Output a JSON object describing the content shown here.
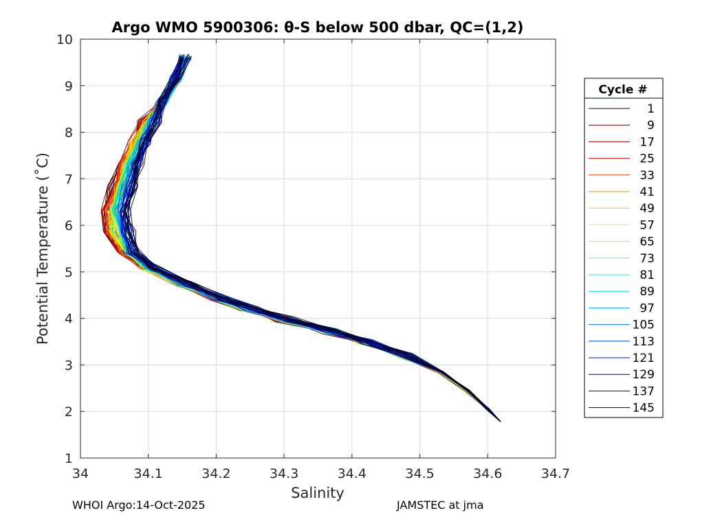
{
  "chart_data": {
    "type": "line",
    "title": "Argo WMO 5900306: θ-S below 500 dbar,  QC=(1,2)",
    "xlabel": "Salinity",
    "ylabel": "Potential Temperature (˚C)",
    "xlim": [
      34,
      34.7
    ],
    "ylim": [
      1,
      10
    ],
    "xticks": [
      "34",
      "34.1",
      "34.2",
      "34.3",
      "34.4",
      "34.5",
      "34.6",
      "34.7"
    ],
    "yticks": [
      "1",
      "2",
      "3",
      "4",
      "5",
      "6",
      "7",
      "8",
      "9",
      "10"
    ],
    "grid": true,
    "legend": {
      "title": "Cycle #",
      "placement": "right-outside",
      "entries": [
        {
          "label": "1",
          "color": "#300000"
        },
        {
          "label": "9",
          "color": "#700000"
        },
        {
          "label": "17",
          "color": "#b00000"
        },
        {
          "label": "25",
          "color": "#e61000"
        },
        {
          "label": "33",
          "color": "#ff4a00"
        },
        {
          "label": "41",
          "color": "#ff8a00"
        },
        {
          "label": "49",
          "color": "#ffc400"
        },
        {
          "label": "57",
          "color": "#f6f600"
        },
        {
          "label": "65",
          "color": "#9cff3a"
        },
        {
          "label": "73",
          "color": "#5aff80"
        },
        {
          "label": "81",
          "color": "#20f0b0"
        },
        {
          "label": "89",
          "color": "#00d8e0"
        },
        {
          "label": "97",
          "color": "#00a8ff"
        },
        {
          "label": "105",
          "color": "#0070e0"
        },
        {
          "label": "113",
          "color": "#0040ff"
        },
        {
          "label": "121",
          "color": "#0010d0"
        },
        {
          "label": "129",
          "color": "#000090"
        },
        {
          "label": "137",
          "color": "#000050"
        },
        {
          "label": "145",
          "color": "#000018"
        }
      ]
    },
    "series_envelope": {
      "description": "representative theta-S profile points (salinity, potential temperature) shared by all cycles with small offsets",
      "salinity": [
        34.619,
        34.6,
        34.57,
        34.53,
        34.48,
        34.42,
        34.37,
        34.3,
        34.25,
        34.2,
        34.15,
        34.1,
        34.07,
        34.055,
        34.05,
        34.06,
        34.07,
        34.085,
        34.1,
        34.12,
        34.14,
        34.155
      ],
      "temperature": [
        1.78,
        2.05,
        2.45,
        2.85,
        3.2,
        3.5,
        3.72,
        3.98,
        4.2,
        4.45,
        4.75,
        5.1,
        5.45,
        5.85,
        6.3,
        6.8,
        7.3,
        7.8,
        8.2,
        8.65,
        9.15,
        9.62
      ]
    }
  },
  "footer": {
    "left": "WHOI Argo:14-Oct-2025",
    "right": "JAMSTEC at jma"
  }
}
